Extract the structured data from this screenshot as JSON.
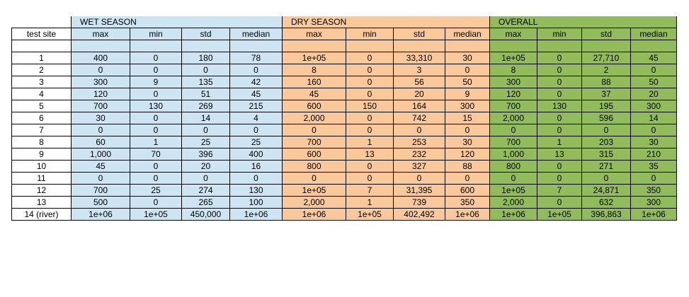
{
  "groups": {
    "wet": "WET SEASON",
    "dry": "DRY SEASON",
    "overall": "OVERALL"
  },
  "headers": {
    "site": "test site",
    "cols": [
      "max",
      "min",
      "std",
      "median"
    ]
  },
  "colors": {
    "wet": "#cde4f2",
    "dry": "#f9c89b",
    "overall": "#92bc5c"
  },
  "rows": [
    [
      "1",
      "400",
      "0",
      "180",
      "78",
      "1e+05",
      "0",
      "33,310",
      "30",
      "1e+05",
      "0",
      "27,710",
      "45"
    ],
    [
      "2",
      "0",
      "0",
      "0",
      "0",
      "8",
      "0",
      "3",
      "0",
      "8",
      "0",
      "2",
      "0"
    ],
    [
      "3",
      "300",
      "9",
      "135",
      "42",
      "160",
      "0",
      "56",
      "50",
      "300",
      "0",
      "88",
      "50"
    ],
    [
      "4",
      "120",
      "0",
      "51",
      "45",
      "45",
      "0",
      "20",
      "9",
      "120",
      "0",
      "37",
      "20"
    ],
    [
      "5",
      "700",
      "130",
      "269",
      "215",
      "600",
      "150",
      "164",
      "300",
      "700",
      "130",
      "195",
      "300"
    ],
    [
      "6",
      "30",
      "0",
      "14",
      "4",
      "2,000",
      "0",
      "742",
      "15",
      "2,000",
      "0",
      "596",
      "14"
    ],
    [
      "7",
      "0",
      "0",
      "0",
      "0",
      "0",
      "0",
      "0",
      "0",
      "0",
      "0",
      "0",
      "0"
    ],
    [
      "8",
      "60",
      "1",
      "25",
      "25",
      "700",
      "1",
      "253",
      "30",
      "700",
      "1",
      "203",
      "30"
    ],
    [
      "9",
      "1,000",
      "70",
      "396",
      "400",
      "600",
      "13",
      "232",
      "120",
      "1,000",
      "13",
      "315",
      "210"
    ],
    [
      "10",
      "45",
      "0",
      "20",
      "16",
      "800",
      "0",
      "327",
      "88",
      "800",
      "0",
      "271",
      "35"
    ],
    [
      "11",
      "0",
      "0",
      "0",
      "0",
      "0",
      "0",
      "0",
      "0",
      "0",
      "0",
      "0",
      "0"
    ],
    [
      "12",
      "700",
      "25",
      "274",
      "130",
      "1e+05",
      "7",
      "31,395",
      "600",
      "1e+05",
      "7",
      "24,871",
      "350"
    ],
    [
      "13",
      "500",
      "0",
      "265",
      "100",
      "2,000",
      "1",
      "739",
      "350",
      "2,000",
      "0",
      "632",
      "300"
    ],
    [
      "14 (river)",
      "1e+06",
      "1e+05",
      "450,000",
      "1e+06",
      "1e+06",
      "1e+05",
      "402,492",
      "1e+06",
      "1e+06",
      "1e+05",
      "396,863",
      "1e+06"
    ]
  ]
}
